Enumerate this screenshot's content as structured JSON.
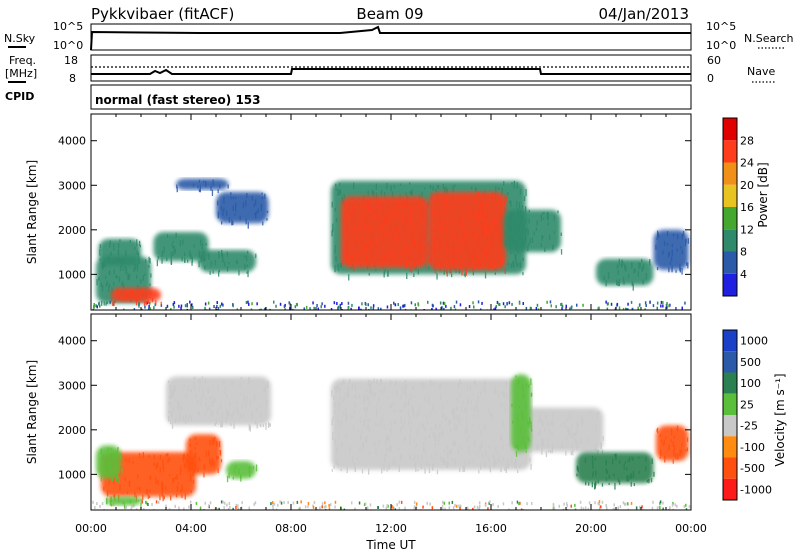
{
  "header": {
    "station": "Pykkvibaer (fitACF)",
    "beam": "Beam 09",
    "date": "04/Jan/2013"
  },
  "nsky_panel": {
    "left_label": "N.Sky",
    "right_label": "N.Search",
    "left_ticks": [
      "10^5",
      "10^0"
    ],
    "right_ticks": [
      "10^5",
      "10^0"
    ]
  },
  "freq_panel": {
    "left_label_line1": "Freq.",
    "left_label_line2": "[MHz]",
    "right_label": "Nave",
    "left_ticks": [
      "18",
      "8"
    ],
    "right_ticks": [
      "60",
      "0"
    ]
  },
  "cpid_panel": {
    "label": "CPID",
    "text": "normal (fast stereo) 153"
  },
  "range_axis_label": "Slant Range [km]",
  "time_axis_label": "Time UT",
  "colors": {
    "power": [
      "#2020e0",
      "#2a5aa8",
      "#2e8a6a",
      "#44a830",
      "#e8c420",
      "#f09018",
      "#ff3c1c",
      "#e00000"
    ],
    "velocity": [
      "#ff1a1a",
      "#ff5010",
      "#ff8c10",
      "#c8c8c8",
      "#5abf3a",
      "#2a8050",
      "#2a5aa8",
      "#1a40c8"
    ]
  },
  "chart_data": [
    {
      "type": "heatmap",
      "title": "Power",
      "x_label": "Time UT",
      "y_label": "Slant Range [km]",
      "x_ticks": [
        "00:00",
        "04:00",
        "08:00",
        "12:00",
        "16:00",
        "20:00",
        "00:00"
      ],
      "x_range_hours": [
        0,
        24
      ],
      "y_range_km": [
        200,
        4600
      ],
      "y_ticks": [
        1000,
        2000,
        3000,
        4000
      ],
      "colorbar_label": "Power [dB]",
      "colorbar_ticks": [
        "28",
        "24",
        "20",
        "16",
        "12",
        "8",
        "4"
      ],
      "colorbar_range": [
        0,
        32
      ],
      "grid": false,
      "regions": [
        {
          "t0": 0.2,
          "t1": 2.4,
          "r0": 350,
          "r1": 1400,
          "value": 10
        },
        {
          "t0": 0.8,
          "t1": 2.8,
          "r0": 380,
          "r1": 700,
          "value": 24
        },
        {
          "t0": 0.3,
          "t1": 2.0,
          "r0": 1200,
          "r1": 1800,
          "value": 9
        },
        {
          "t0": 2.5,
          "t1": 4.7,
          "r0": 1300,
          "r1": 1950,
          "value": 8
        },
        {
          "t0": 4.3,
          "t1": 6.6,
          "r0": 1050,
          "r1": 1550,
          "value": 9
        },
        {
          "t0": 5.0,
          "t1": 7.1,
          "r0": 2150,
          "r1": 2850,
          "value": 6
        },
        {
          "t0": 3.4,
          "t1": 5.5,
          "r0": 2900,
          "r1": 3150,
          "value": 5
        },
        {
          "t0": 9.6,
          "t1": 17.4,
          "r0": 1000,
          "r1": 3100,
          "value": 8
        },
        {
          "t0": 10.0,
          "t1": 13.5,
          "r0": 1150,
          "r1": 2750,
          "value": 26
        },
        {
          "t0": 13.5,
          "t1": 16.6,
          "r0": 1100,
          "r1": 2850,
          "value": 24
        },
        {
          "t0": 16.5,
          "t1": 18.8,
          "r0": 1500,
          "r1": 2450,
          "value": 10
        },
        {
          "t0": 20.2,
          "t1": 22.5,
          "r0": 750,
          "r1": 1350,
          "value": 11
        },
        {
          "t0": 22.5,
          "t1": 23.9,
          "r0": 1100,
          "r1": 2000,
          "value": 6
        }
      ]
    },
    {
      "type": "heatmap",
      "title": "Velocity",
      "x_label": "Time UT",
      "y_label": "Slant Range [km]",
      "x_ticks": [
        "00:00",
        "04:00",
        "08:00",
        "12:00",
        "16:00",
        "20:00",
        "00:00"
      ],
      "x_range_hours": [
        0,
        24
      ],
      "y_range_km": [
        200,
        4600
      ],
      "y_ticks": [
        1000,
        2000,
        3000,
        4000
      ],
      "colorbar_label": "Velocity [m s⁻¹]",
      "colorbar_ticks": [
        "1000",
        "500",
        "100",
        "25",
        "-25",
        "-100",
        "-500",
        "-1000"
      ],
      "grid": false,
      "regions": [
        {
          "t0": 3.0,
          "t1": 7.2,
          "r0": 2100,
          "r1": 3200,
          "value": 0
        },
        {
          "t0": 9.6,
          "t1": 17.6,
          "r0": 1100,
          "r1": 3150,
          "value": 0
        },
        {
          "t0": 17.0,
          "t1": 20.5,
          "r0": 1500,
          "r1": 2500,
          "value": 0
        },
        {
          "t0": 0.4,
          "t1": 4.2,
          "r0": 500,
          "r1": 1500,
          "value": -300
        },
        {
          "t0": 3.8,
          "t1": 5.2,
          "r0": 1000,
          "r1": 1900,
          "value": -400
        },
        {
          "t0": 0.2,
          "t1": 1.2,
          "r0": 900,
          "r1": 1650,
          "value": 80
        },
        {
          "t0": 0.6,
          "t1": 2.0,
          "r0": 300,
          "r1": 500,
          "value": 60
        },
        {
          "t0": 5.4,
          "t1": 6.6,
          "r0": 900,
          "r1": 1300,
          "value": 70
        },
        {
          "t0": 16.8,
          "t1": 17.6,
          "r0": 1500,
          "r1": 3250,
          "value": 60
        },
        {
          "t0": 19.4,
          "t1": 22.5,
          "r0": 800,
          "r1": 1500,
          "value": 150
        },
        {
          "t0": 22.6,
          "t1": 23.9,
          "r0": 1300,
          "r1": 2100,
          "value": -400
        }
      ]
    }
  ]
}
